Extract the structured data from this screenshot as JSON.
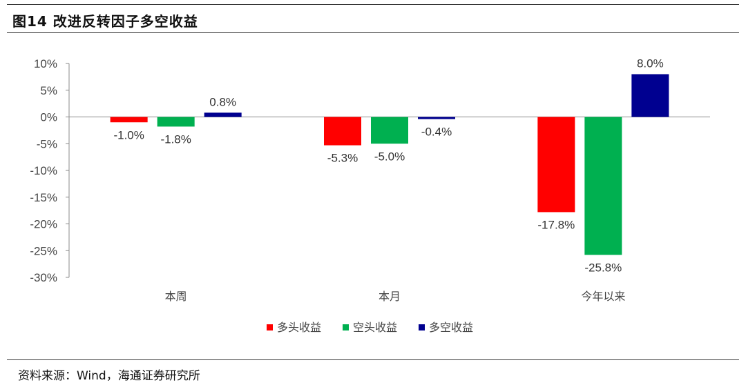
{
  "figure": {
    "title": "图14 改进反转因子多空收益",
    "source": "资料来源：Wind，海通证券研究所"
  },
  "chart_data": {
    "type": "bar",
    "categories": [
      "本周",
      "本月",
      "今年以来"
    ],
    "series": [
      {
        "name": "多头收益",
        "color": "#ff0000",
        "values": [
          -1.0,
          -5.3,
          -17.8
        ],
        "labels": [
          "-1.0%",
          "-5.3%",
          "-17.8%"
        ]
      },
      {
        "name": "空头收益",
        "color": "#00b050",
        "values": [
          -1.8,
          -5.0,
          -25.8
        ],
        "labels": [
          "-1.8%",
          "-5.0%",
          "-25.8%"
        ]
      },
      {
        "name": "多空收益",
        "color": "#000090",
        "values": [
          0.8,
          -0.4,
          8.0
        ],
        "labels": [
          "0.8%",
          "-0.4%",
          "8.0%"
        ]
      }
    ],
    "ylim": [
      -30,
      10
    ],
    "yticks": [
      10,
      5,
      0,
      -5,
      -10,
      -15,
      -20,
      -25,
      -30
    ],
    "ytick_labels": [
      "10%",
      "5%",
      "0%",
      "-5%",
      "-10%",
      "-15%",
      "-20%",
      "-25%",
      "-30%"
    ],
    "legend_position": "bottom",
    "grid": false
  }
}
